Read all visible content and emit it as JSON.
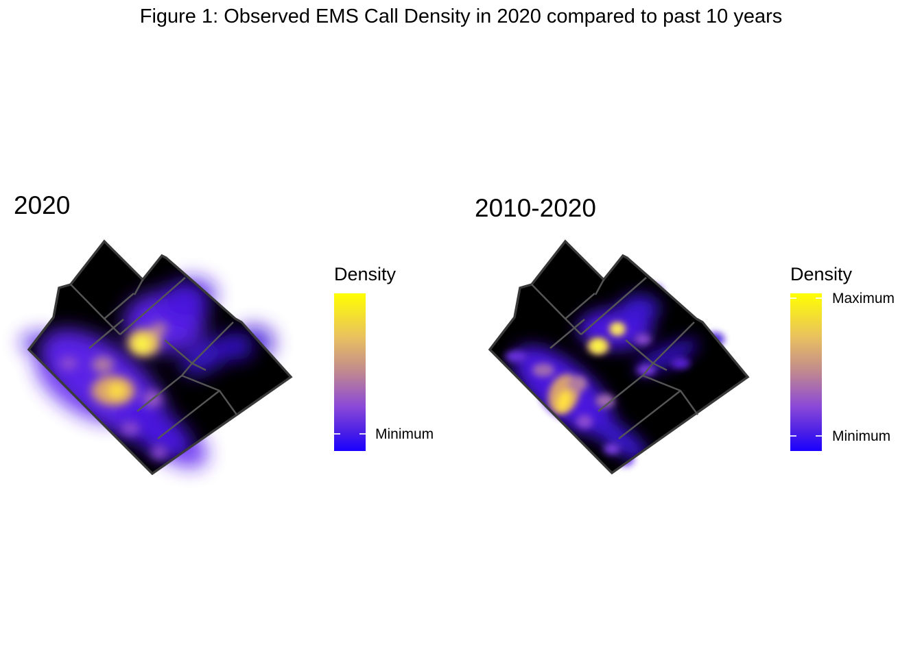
{
  "title": "Figure 1: Observed EMS Call Density in 2020 compared to past 10 years",
  "colors": {
    "background": "#000000",
    "boundary": "#555555",
    "scale_low": "#1a00ff",
    "scale_mid": "#7a3cd9",
    "scale_high_mid": "#d9a66b",
    "scale_high": "#ffff00"
  },
  "panels": [
    {
      "title": "2020",
      "legend": {
        "title": "Density",
        "labels": [
          "Minimum"
        ]
      }
    },
    {
      "title": "2010-2020",
      "legend": {
        "title": "Density",
        "labels": [
          "Maximum",
          "Minimum"
        ]
      }
    }
  ]
}
